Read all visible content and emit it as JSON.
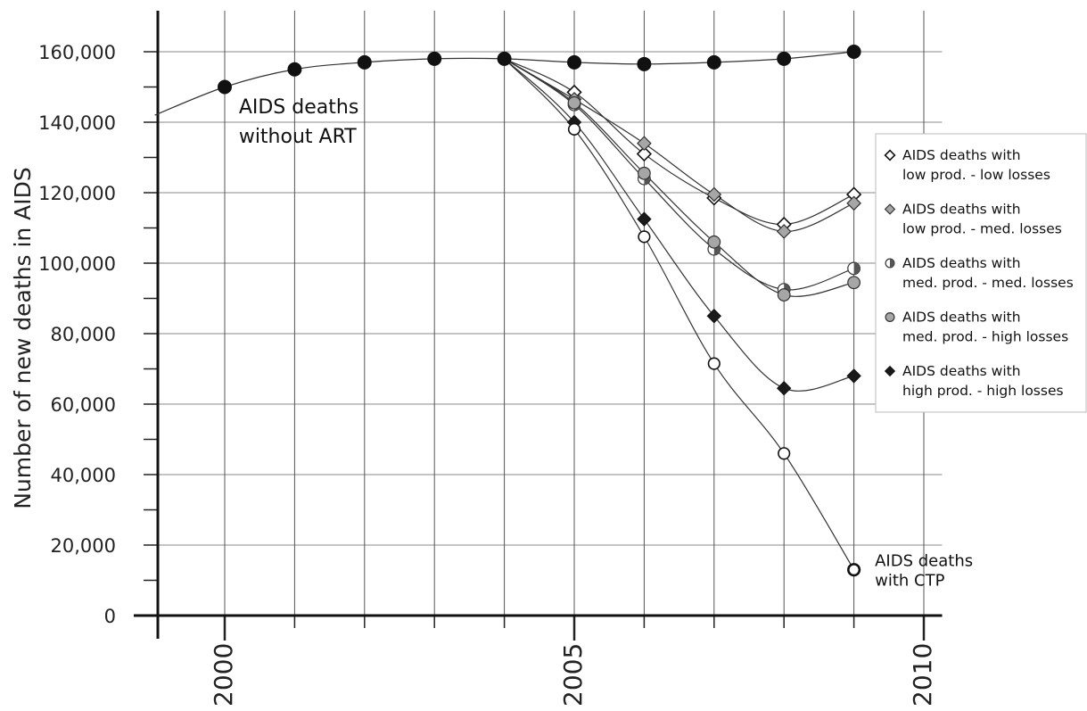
{
  "chart_data": {
    "type": "line",
    "title": "",
    "xlabel": "",
    "ylabel": "Number of new deaths in AIDS",
    "xlim": [
      1999,
      2010.3
    ],
    "ylim": [
      0,
      168000
    ],
    "x_ticks": [
      2000,
      2005,
      2010
    ],
    "x_tick_labels": [
      "2000",
      "2005",
      "2010"
    ],
    "y_ticks": [
      0,
      20000,
      40000,
      60000,
      80000,
      100000,
      120000,
      140000,
      160000
    ],
    "y_tick_labels": [
      "0",
      "20,000",
      "40,000",
      "60,000",
      "80,000",
      "100,000",
      "120,000",
      "140,000",
      "160,000"
    ],
    "grid": true,
    "legend_position": "right",
    "series": [
      {
        "name": "AIDS deaths without ART",
        "marker": "filled-circle",
        "x": [
          1999,
          2000,
          2001,
          2002,
          2003,
          2004,
          2005,
          2006,
          2007,
          2008,
          2009
        ],
        "y": [
          142000,
          150000,
          155000,
          157000,
          158000,
          158000,
          157000,
          156500,
          157000,
          158000,
          160000
        ]
      },
      {
        "name": "AIDS deaths with low prod. - low losses",
        "marker": "open-diamond",
        "x": [
          2004,
          2005,
          2006,
          2007,
          2008,
          2009
        ],
        "y": [
          158000,
          148500,
          131000,
          118500,
          111000,
          119500
        ]
      },
      {
        "name": "AIDS deaths with low prod. - med. losses",
        "marker": "gray-diamond",
        "x": [
          2004,
          2005,
          2006,
          2007,
          2008,
          2009
        ],
        "y": [
          158000,
          146500,
          134000,
          119500,
          109000,
          117000
        ]
      },
      {
        "name": "AIDS deaths with med. prod. - med. losses",
        "marker": "half-circle",
        "x": [
          2004,
          2005,
          2006,
          2007,
          2008,
          2009
        ],
        "y": [
          158000,
          145000,
          124000,
          104000,
          92500,
          98500
        ]
      },
      {
        "name": "AIDS deaths with med. prod. - high losses",
        "marker": "gray-circle",
        "x": [
          2004,
          2005,
          2006,
          2007,
          2008,
          2009
        ],
        "y": [
          158000,
          145500,
          125500,
          106000,
          91000,
          94500
        ]
      },
      {
        "name": "AIDS deaths with high prod. - high losses",
        "marker": "filled-diamond",
        "x": [
          2004,
          2005,
          2006,
          2007,
          2008,
          2009
        ],
        "y": [
          158000,
          140000,
          112500,
          85000,
          64500,
          68000
        ]
      },
      {
        "name": "AIDS deaths with CTP",
        "marker": "open-circle",
        "x": [
          2004,
          2005,
          2006,
          2007,
          2008,
          2009
        ],
        "y": [
          158000,
          138000,
          107500,
          71500,
          46000,
          13000
        ]
      }
    ],
    "annotations": [
      {
        "lines": [
          "AIDS deaths",
          "without ART"
        ],
        "x": 2000.1,
        "y": 141000
      },
      {
        "lines": [
          "AIDS deaths",
          "with CTP"
        ],
        "x": 2009.3,
        "y": 13000
      }
    ],
    "legend": [
      {
        "marker": "open-diamond",
        "lines": [
          "AIDS deaths with",
          "low prod. - low losses"
        ]
      },
      {
        "marker": "gray-diamond",
        "lines": [
          "AIDS deaths with",
          "low prod. - med. losses"
        ]
      },
      {
        "marker": "half-circle",
        "lines": [
          "AIDS deaths with",
          "med. prod. - med. losses"
        ]
      },
      {
        "marker": "gray-circle",
        "lines": [
          "AIDS deaths with",
          "med. prod. - high losses"
        ]
      },
      {
        "marker": "filled-diamond",
        "lines": [
          "AIDS deaths with",
          "high prod. - high losses"
        ]
      }
    ]
  }
}
